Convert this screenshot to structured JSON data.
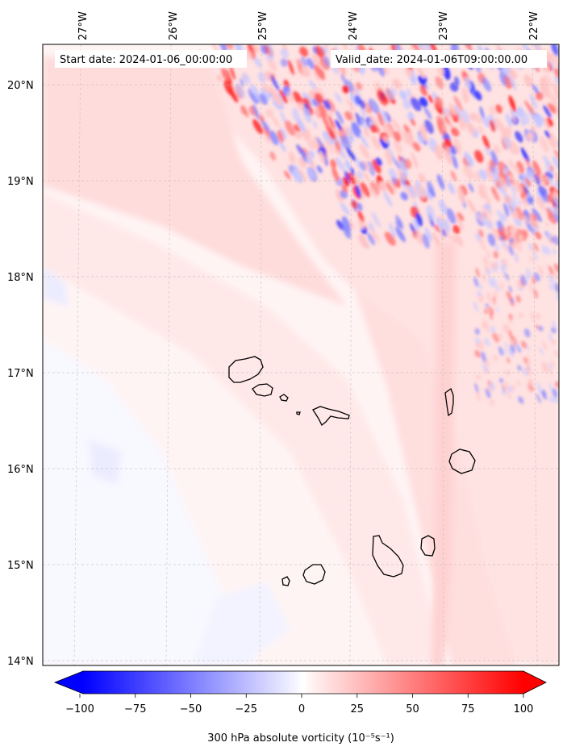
{
  "header": {
    "start_date": "Start date: 2024-01-06_00:00:00",
    "valid_date": "Valid_date: 2024-01-06T09:00:00.00"
  },
  "axes": {
    "lon_labels": [
      "27°W",
      "26°W",
      "25°W",
      "24°W",
      "23°W",
      "22°W"
    ],
    "lat_labels": [
      "20°N",
      "19°N",
      "18°N",
      "17°N",
      "16°N",
      "15°N",
      "14°N"
    ],
    "lon_range": [
      -27.35,
      -21.75
    ],
    "lat_range": [
      13.95,
      20.45
    ],
    "grid": true
  },
  "colorbar": {
    "ticks": [
      "−100",
      "−75",
      "−50",
      "−25",
      "0",
      "25",
      "50",
      "75",
      "100"
    ],
    "range": [
      -100,
      100
    ],
    "label": "300 hPa absolute vorticity (10⁻⁵s⁻¹)",
    "colormap": "bwr",
    "extend": "both"
  },
  "colors": {
    "neg": "#0000ff",
    "zero": "#ffffff",
    "pos": "#ff0000"
  },
  "islands": [
    "Santo Antão",
    "São Vicente",
    "Santa Luzia",
    "São Nicolau",
    "Sal",
    "Boa Vista",
    "Brava",
    "Fogo",
    "Santiago",
    "Maio"
  ]
}
